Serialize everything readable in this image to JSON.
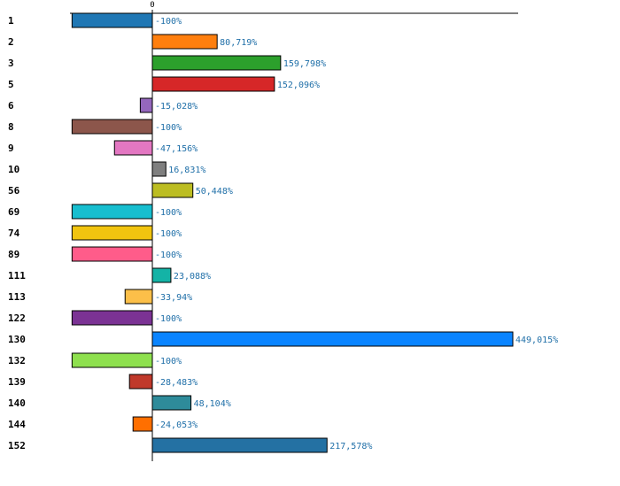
{
  "chart_data": {
    "type": "bar",
    "orientation": "horizontal",
    "zero_label": "0",
    "categories": [
      "1",
      "2",
      "3",
      "5",
      "6",
      "8",
      "9",
      "10",
      "56",
      "69",
      "74",
      "89",
      "111",
      "113",
      "122",
      "130",
      "132",
      "139",
      "140",
      "144",
      "152"
    ],
    "values": [
      -100,
      80.719,
      159.798,
      152.096,
      -15.028,
      -100,
      -47.156,
      16.831,
      50.448,
      -100,
      -100,
      -100,
      23.088,
      -33.94,
      -100,
      449.015,
      -100,
      -28.483,
      48.104,
      -24.053,
      217.578
    ],
    "value_labels": [
      "-100%",
      "80,719%",
      "159,798%",
      "152,096%",
      "-15,028%",
      "-100%",
      "-47,156%",
      "16,831%",
      "50,448%",
      "-100%",
      "-100%",
      "-100%",
      "23,088%",
      "-33,94%",
      "-100%",
      "449,015%",
      "-100%",
      "-28,483%",
      "48,104%",
      "-24,053%",
      "217,578%"
    ],
    "colors": [
      "#1f77b4",
      "#ff7f0e",
      "#2ca02c",
      "#d62728",
      "#9467bd",
      "#8c564b",
      "#e377c2",
      "#7f7f7f",
      "#bcbd22",
      "#17becf",
      "#f1c40f",
      "#ff5c8a",
      "#14b3a6",
      "#fcbf49",
      "#7b3294",
      "#0a84ff",
      "#8ee04e",
      "#c0392b",
      "#2e8b9a",
      "#ff6f00",
      "#2471a3"
    ],
    "grid": false,
    "legend": "none"
  }
}
